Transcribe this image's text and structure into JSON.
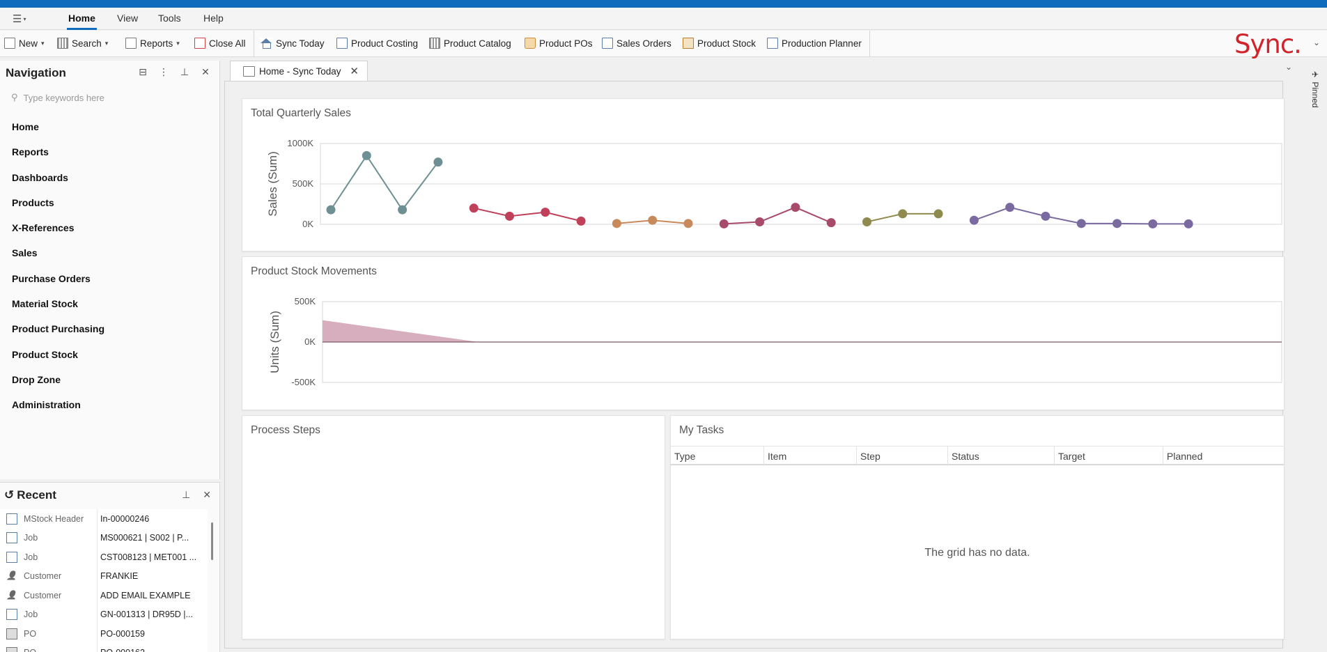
{
  "menu": {
    "items": [
      "Home",
      "View",
      "Tools",
      "Help"
    ]
  },
  "toolbar": {
    "new_label": "New",
    "search_label": "Search",
    "reports_label": "Reports",
    "close_all_label": "Close All",
    "sync_today_label": "Sync Today",
    "product_costing_label": "Product Costing",
    "product_catalog_label": "Product Catalog",
    "product_pos_label": "Product POs",
    "sales_orders_label": "Sales Orders",
    "product_stock_label": "Product Stock",
    "production_planner_label": "Production Planner"
  },
  "brand": {
    "logo_text": "Sync.",
    "color": "#d2232a"
  },
  "navigation": {
    "title": "Navigation",
    "search_placeholder": "Type keywords here",
    "items": [
      "Home",
      "Reports",
      "Dashboards",
      "Products",
      "X-References",
      "Sales",
      "Purchase Orders",
      "Material Stock",
      "Product Purchasing",
      "Product Stock",
      "Drop Zone",
      "Administration"
    ]
  },
  "recent": {
    "title": "Recent",
    "rows": [
      {
        "type": "MStock Header",
        "value": "In-00000246",
        "icon": "stock-in-icon"
      },
      {
        "type": "Job",
        "value": "MS000621 | S002 | P...",
        "icon": "job-grid-icon"
      },
      {
        "type": "Job",
        "value": "CST008123 | MET001 ...",
        "icon": "job-grid-icon"
      },
      {
        "type": "Customer",
        "value": "FRANKIE",
        "icon": "customer-icon"
      },
      {
        "type": "Customer",
        "value": "ADD EMAIL EXAMPLE",
        "icon": "customer-icon"
      },
      {
        "type": "Job",
        "value": "GN-001313 | DR95D |...",
        "icon": "job-grid-icon"
      },
      {
        "type": "PO",
        "value": "PO-000159",
        "icon": "po-bag-icon"
      },
      {
        "type": "PO",
        "value": "PO-000162",
        "icon": "po-bag-icon"
      }
    ]
  },
  "tab": {
    "label": "Home - Sync Today",
    "pinned_label": "Pinned"
  },
  "dashboard": {
    "sales_card_title": "Total Quarterly Sales",
    "stock_card_title": "Product Stock Movements",
    "process_card_title": "Process Steps",
    "tasks_card_title": "My Tasks",
    "tasks_columns": [
      "Type",
      "Item",
      "Step",
      "Status",
      "Target",
      "Planned"
    ],
    "tasks_empty": "The grid has no data."
  },
  "chart_data": [
    {
      "type": "line",
      "title": "Total Quarterly Sales",
      "ylabel": "Sales (Sum)",
      "ylim": [
        0,
        1000000
      ],
      "yticks": [
        "0K",
        "500K",
        "1000K"
      ],
      "grid": true,
      "series": [
        {
          "color": "#6e8f93",
          "values": [
            180000,
            850000,
            180000,
            770000
          ]
        },
        {
          "color": "#c0405a",
          "values": [
            200000,
            100000,
            150000,
            40000
          ]
        },
        {
          "color": "#c88a5a",
          "values": [
            10000,
            50000,
            10000
          ]
        },
        {
          "color": "#a84a6a",
          "values": [
            5000,
            30000,
            210000,
            20000
          ]
        },
        {
          "color": "#8f8a4e",
          "values": [
            30000,
            130000,
            130000
          ]
        },
        {
          "color": "#7a6aa0",
          "values": [
            50000,
            210000,
            100000,
            10000,
            10000,
            5000,
            5000
          ]
        }
      ]
    },
    {
      "type": "area",
      "title": "Product Stock Movements",
      "ylabel": "Units (Sum)",
      "ylim": [
        -500000,
        500000
      ],
      "yticks": [
        "-500K",
        "0K",
        "500K"
      ],
      "grid": true,
      "series": [
        {
          "color": "#d3a5b6",
          "values": [
            270000,
            0,
            0,
            0,
            0,
            0,
            0
          ]
        }
      ]
    }
  ]
}
